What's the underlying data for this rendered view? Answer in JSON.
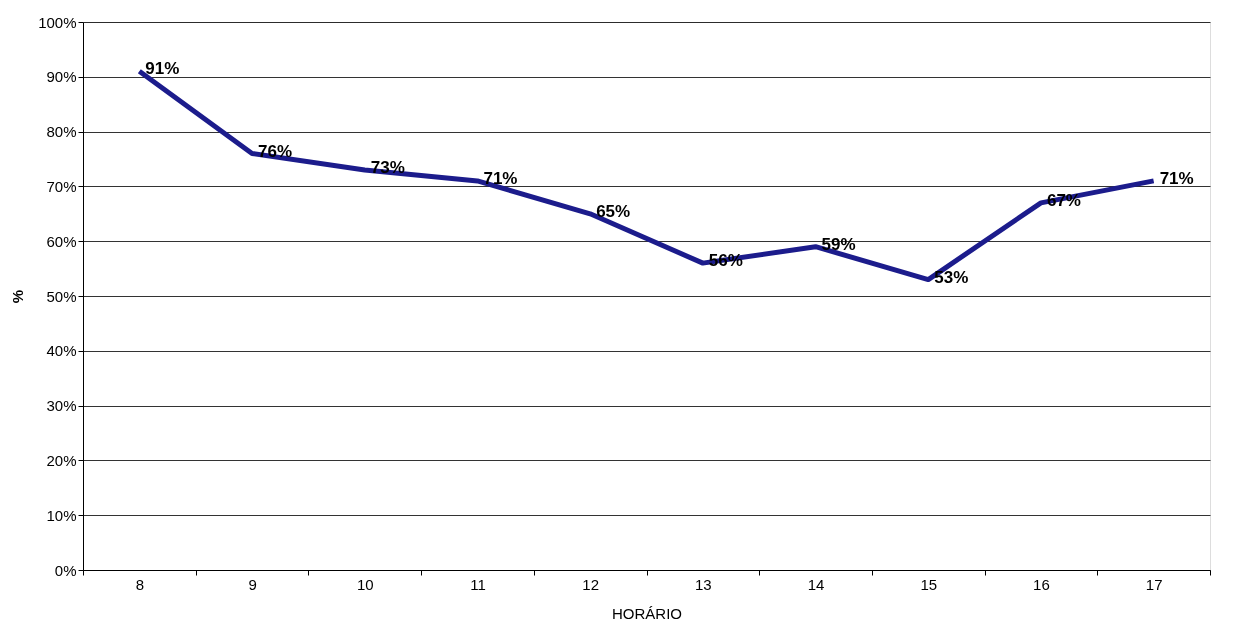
{
  "chart_data": {
    "type": "line",
    "xlabel": "HORÁRIO",
    "ylabel": "%",
    "categories": [
      "8",
      "9",
      "10",
      "11",
      "12",
      "13",
      "14",
      "15",
      "16",
      "17"
    ],
    "series": [
      {
        "color": "#1c1c8c",
        "values": [
          91,
          76,
          73,
          71,
          65,
          56,
          59,
          53,
          67,
          71
        ],
        "value_labels": [
          "91%",
          "76%",
          "73%",
          "71%",
          "65%",
          "56%",
          "59%",
          "53%",
          "67%",
          "71%"
        ]
      }
    ],
    "ylim": [
      0,
      100
    ],
    "yticks": [
      {
        "value": 0,
        "label": "0%"
      },
      {
        "value": 10,
        "label": "10%"
      },
      {
        "value": 20,
        "label": "20%"
      },
      {
        "value": 30,
        "label": "30%"
      },
      {
        "value": 40,
        "label": "40%"
      },
      {
        "value": 50,
        "label": "50%"
      },
      {
        "value": 60,
        "label": "60%"
      },
      {
        "value": 70,
        "label": "70%"
      },
      {
        "value": 80,
        "label": "80%"
      },
      {
        "value": 90,
        "label": "90%"
      },
      {
        "value": 100,
        "label": "100%"
      }
    ],
    "grid": "y",
    "marker": "none",
    "line_style": "solid"
  }
}
